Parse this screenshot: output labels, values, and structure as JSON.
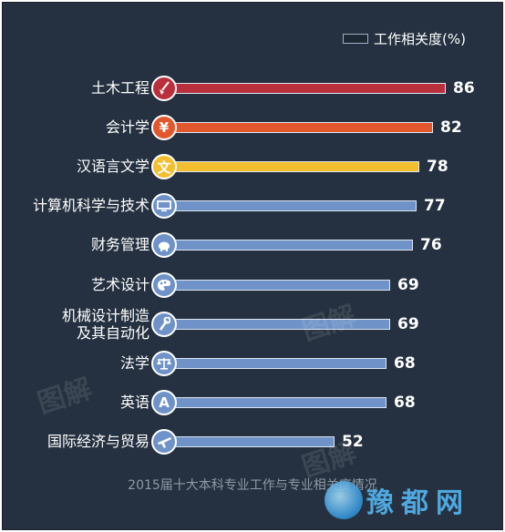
{
  "legend": {
    "label": "工作相关度(%)"
  },
  "footer": {
    "caption": "2015届十大本科专业工作与专业相关度情况"
  },
  "watermarks": [
    "图解",
    "图解",
    "图解"
  ],
  "logo": {
    "text": "豫都网"
  },
  "colors": {
    "background": "#253140",
    "civil": "#b92f3c",
    "accounting": "#e2572b",
    "chinese": "#f3bf2f",
    "others": "#6f93c8"
  },
  "chart_data": {
    "type": "bar",
    "orientation": "horizontal",
    "title": "2015届十大本科专业工作与专业相关度情况",
    "legend": "工作相关度(%)",
    "categories": [
      "土木工程",
      "会计学",
      "汉语言文学",
      "计算机科学与技术",
      "财务管理",
      "艺术设计",
      "机械设计制造及其自动化",
      "法学",
      "英语",
      "国际经济与贸易"
    ],
    "values": [
      86,
      82,
      78,
      77,
      76,
      69,
      69,
      68,
      68,
      52
    ],
    "bar_colors": [
      "#b92f3c",
      "#e2572b",
      "#f3bf2f",
      "#6f93c8",
      "#6f93c8",
      "#6f93c8",
      "#6f93c8",
      "#6f93c8",
      "#6f93c8",
      "#6f93c8"
    ],
    "icons": [
      "shovel-icon",
      "yen-icon",
      "wen-character-icon",
      "computer-icon",
      "piggy-bank-icon",
      "palette-icon",
      "wrench-icon",
      "scales-icon",
      "letter-a-icon",
      "airplane-icon"
    ],
    "icon_glyphs": [
      "",
      "¥",
      "文",
      "",
      "",
      "",
      "",
      "",
      "A",
      ""
    ],
    "label_lines": [
      [
        "土木工程"
      ],
      [
        "会计学"
      ],
      [
        "汉语言文学"
      ],
      [
        "计算机科学与技术"
      ],
      [
        "财务管理"
      ],
      [
        "艺术设计"
      ],
      [
        "机械设计制造",
        "及其自动化"
      ],
      [
        "法学"
      ],
      [
        "英语"
      ],
      [
        "国际经济与贸易"
      ]
    ],
    "xlim": [
      0,
      86
    ],
    "grid": false
  }
}
